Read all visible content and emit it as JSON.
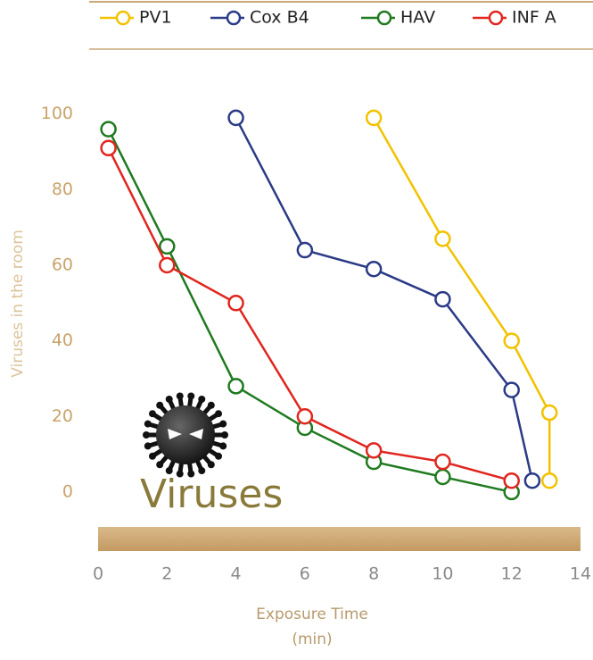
{
  "chart_data": {
    "type": "line",
    "ylabel": "Viruses in the room",
    "xlabel": "Exposure Time",
    "xlabel_unit": "(min)",
    "annotation": "Viruses",
    "xlim": [
      0,
      14
    ],
    "xticks": [
      0,
      2,
      4,
      6,
      8,
      10,
      12,
      14
    ],
    "ylim": [
      -9,
      103
    ],
    "yticks": [
      0,
      20,
      40,
      60,
      80,
      100
    ],
    "grid": false,
    "legend": "top",
    "series": [
      {
        "name": "PV1",
        "color": "#f2c200",
        "x": [
          8,
          10,
          12,
          13.1,
          13.1
        ],
        "values": [
          99,
          67,
          40,
          21,
          3
        ]
      },
      {
        "name": "Cox B4",
        "color": "#2b3a86",
        "x": [
          4,
          6,
          8,
          10,
          12,
          12.6
        ],
        "values": [
          99,
          64,
          59,
          51,
          27,
          3
        ]
      },
      {
        "name": "HAV",
        "color": "#1f7a1f",
        "x": [
          0.3,
          2,
          4,
          6,
          8,
          10,
          12
        ],
        "values": [
          96,
          65,
          28,
          17,
          8,
          4,
          0
        ]
      },
      {
        "name": "INF A",
        "color": "#e0261f",
        "x": [
          0.3,
          2,
          4,
          6,
          8,
          10,
          12
        ],
        "values": [
          91,
          60,
          50,
          20,
          11,
          8,
          3
        ]
      }
    ]
  }
}
